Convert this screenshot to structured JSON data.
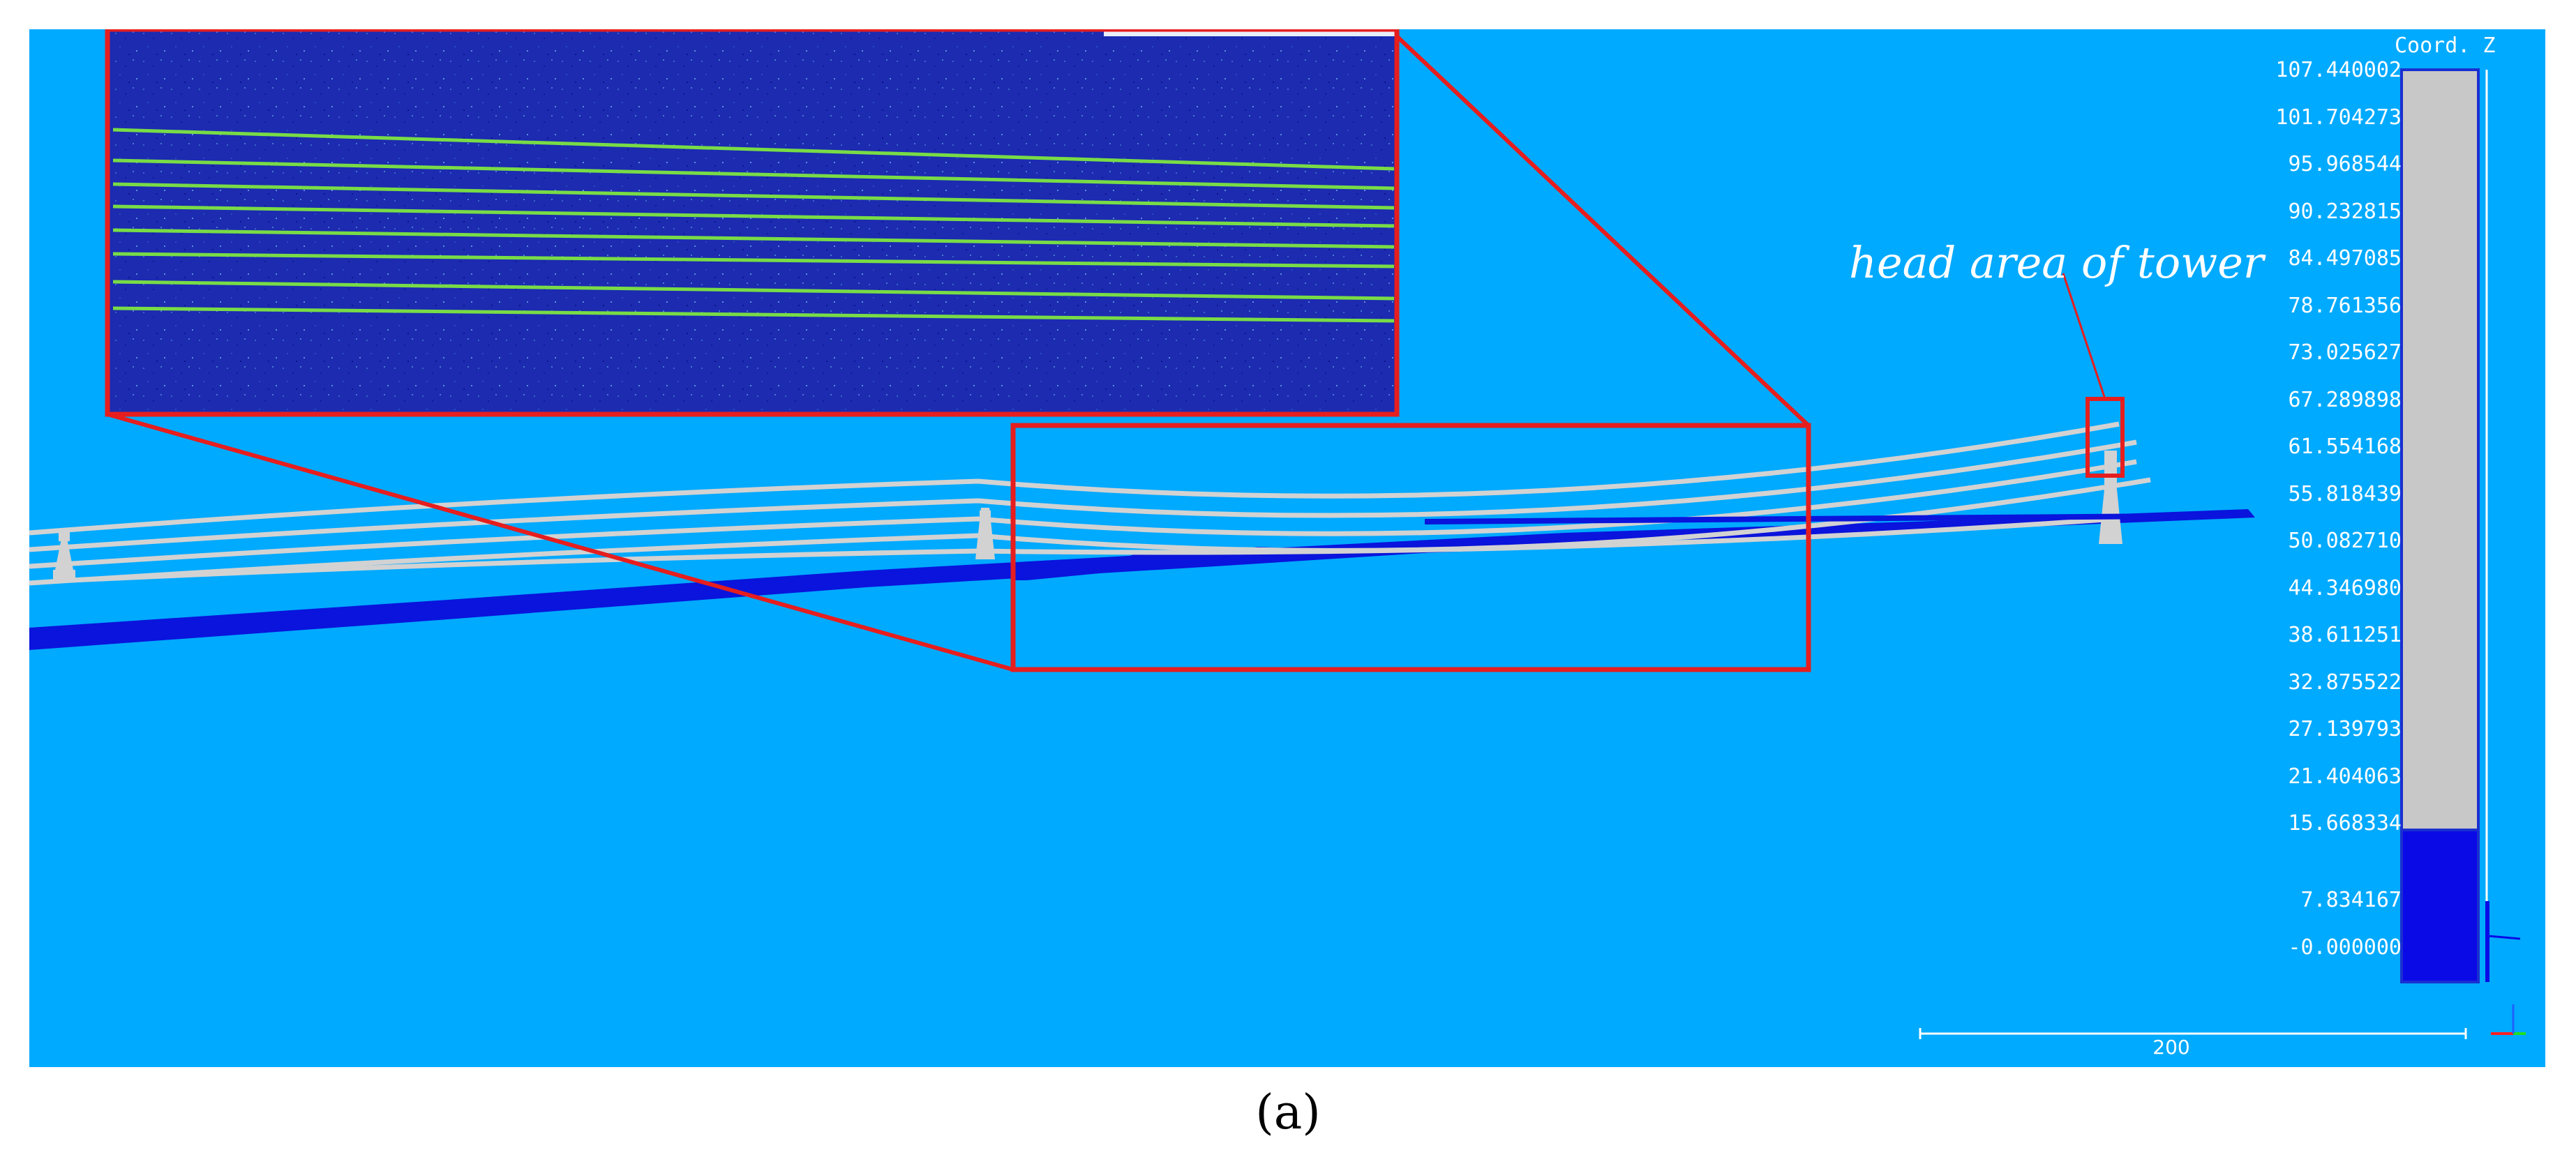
{
  "viewer": {
    "background_color": "#00aaff",
    "scale_title": "Coord. Z",
    "color_scale": {
      "ticks": [
        "107.440002",
        "101.704273",
        "95.968544",
        "90.232815",
        "84.497085",
        "78.761356",
        "73.025627",
        "67.289898",
        "61.554168",
        "55.818439",
        "50.082710",
        "44.346980",
        "38.611251",
        "32.875522",
        "27.139793",
        "21.404063",
        "15.668334",
        "7.834167",
        "-0.000000"
      ],
      "low_color": "#0a0ae6",
      "high_color": "#c8c8c8",
      "break_value": "15.668334"
    },
    "scale_bar": {
      "label": "200"
    },
    "annotation": "head area of tower",
    "colors": {
      "ground": "#0a14dc",
      "wires": "#d2d2d2",
      "highlight": "#e61e1e",
      "inset_points": "#1e2fb4",
      "inset_wires": "#78dc46"
    }
  },
  "caption": "(a)"
}
